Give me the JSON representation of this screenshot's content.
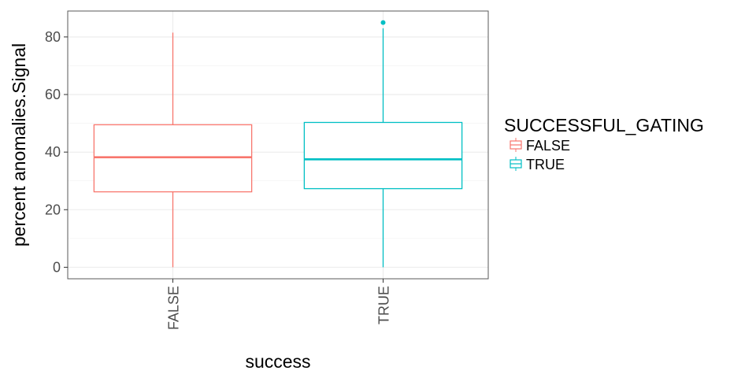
{
  "chart_data": {
    "type": "boxplot",
    "title": "",
    "xlabel": "success",
    "ylabel": "percent anomalies.Signal",
    "categories": [
      "FALSE",
      "TRUE"
    ],
    "ylim": [
      -4,
      89
    ],
    "yticks": [
      0,
      20,
      40,
      60,
      80
    ],
    "grid": true,
    "legend": {
      "title": "SUCCESSFUL_GATING",
      "placement": "right",
      "entries": [
        "FALSE",
        "TRUE"
      ]
    },
    "series": [
      {
        "name": "FALSE",
        "color": "#F8766D",
        "min": 0,
        "q1": 26.2,
        "median": 38.2,
        "q3": 49.5,
        "max": 81.5,
        "outliers": []
      },
      {
        "name": "TRUE",
        "color": "#00BFC4",
        "min": 0,
        "q1": 27.3,
        "median": 37.5,
        "q3": 50.3,
        "max": 83,
        "outliers": [
          85
        ]
      }
    ]
  }
}
